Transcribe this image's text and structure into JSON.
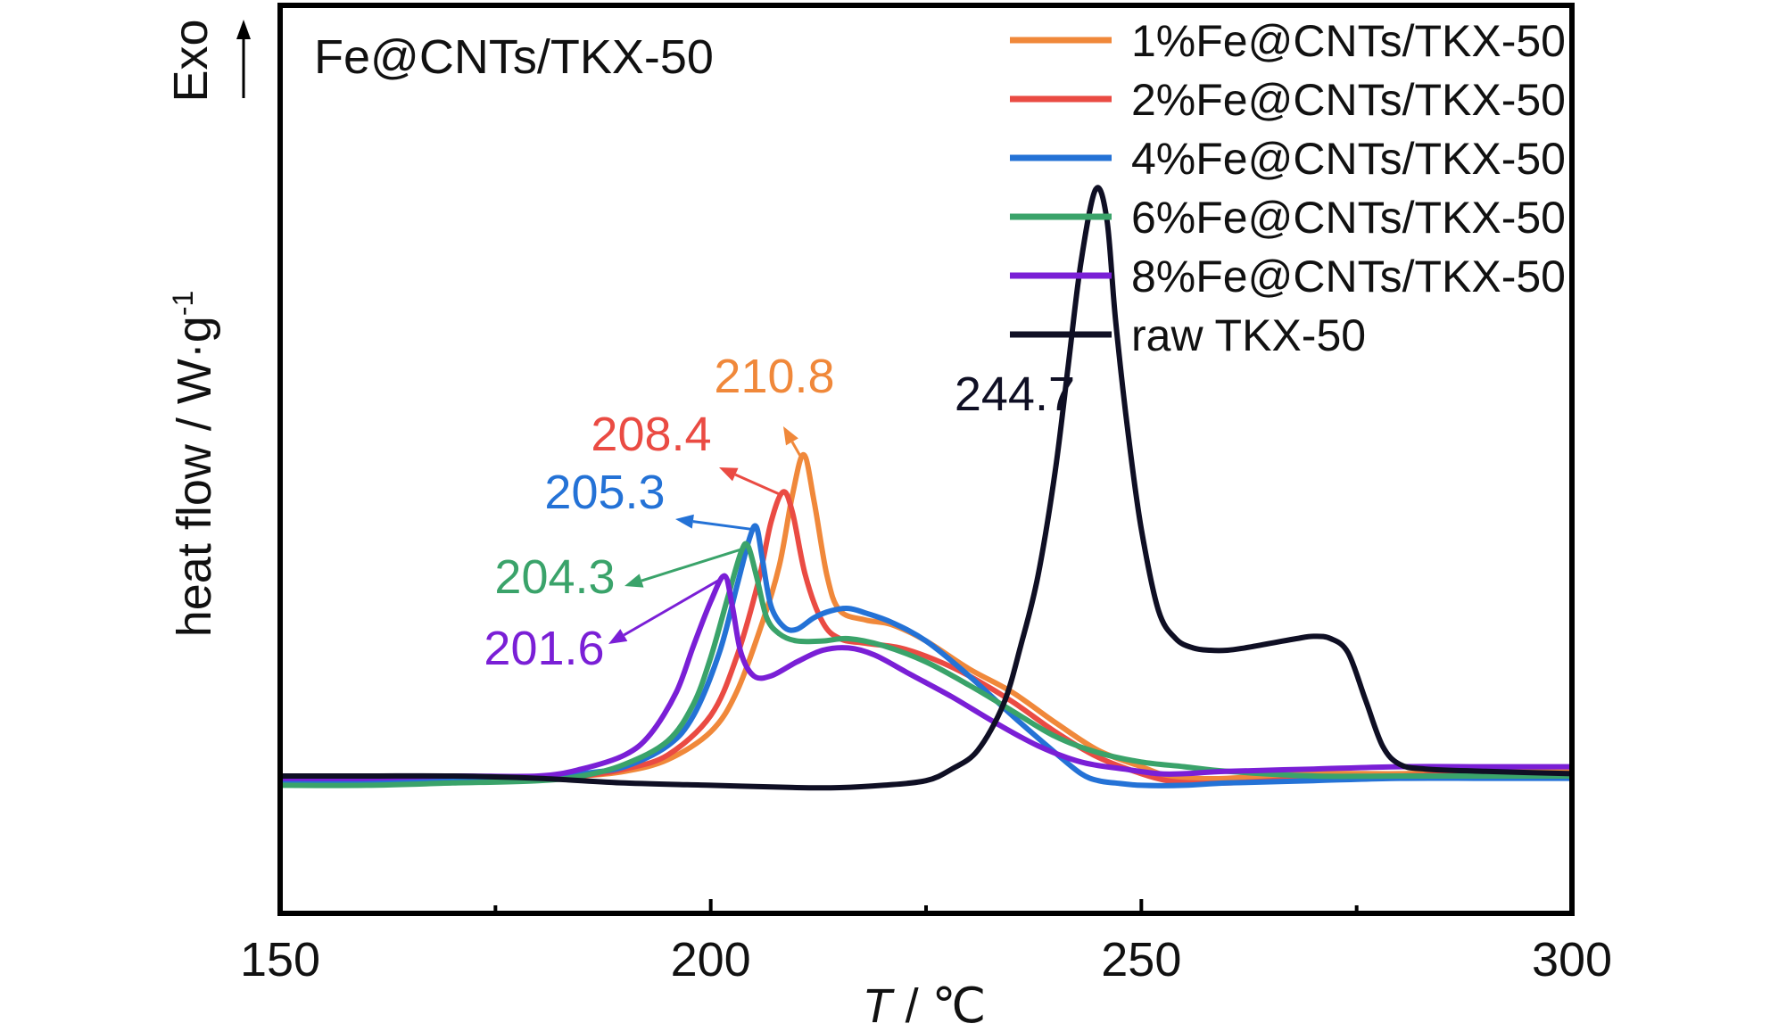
{
  "chart_data": {
    "type": "line",
    "title": "Fe@CNTs/TKX-50",
    "xlabel": {
      "italic": "T",
      "rest": " / ℃"
    },
    "ylabel": {
      "main": "heat flow / W·g",
      "sup": "-1"
    },
    "exo_label": "Exo",
    "xlim": [
      150,
      300
    ],
    "ylim": [
      -0.6,
      3.3
    ],
    "xticks": [
      150,
      200,
      250,
      300
    ],
    "xtick_labels": [
      "150",
      "200",
      "250",
      "300"
    ],
    "minor_xticks": [
      175,
      225,
      275
    ],
    "legend_position": "top-right",
    "series": [
      {
        "name": "1%Fe@CNTs/TKX-50",
        "color": "#f0883a",
        "peak": {
          "x": 210.8,
          "label": "210.8"
        },
        "points": [
          [
            150,
            -0.03
          ],
          [
            170,
            -0.03
          ],
          [
            180,
            -0.02
          ],
          [
            185,
            -0.01
          ],
          [
            190,
            0.01
          ],
          [
            195,
            0.06
          ],
          [
            200,
            0.18
          ],
          [
            203,
            0.35
          ],
          [
            206,
            0.65
          ],
          [
            208,
            0.9
          ],
          [
            209.5,
            1.2
          ],
          [
            210.8,
            1.37
          ],
          [
            212,
            1.17
          ],
          [
            213.5,
            0.85
          ],
          [
            215,
            0.7
          ],
          [
            218,
            0.66
          ],
          [
            221,
            0.64
          ],
          [
            225,
            0.57
          ],
          [
            230,
            0.45
          ],
          [
            235,
            0.35
          ],
          [
            240,
            0.22
          ],
          [
            245,
            0.1
          ],
          [
            250,
            0.03
          ],
          [
            253,
            -0.01
          ],
          [
            256,
            -0.02
          ],
          [
            260,
            -0.02
          ],
          [
            270,
            0.0
          ],
          [
            280,
            0.0
          ],
          [
            290,
            0.01
          ],
          [
            300,
            0.01
          ]
        ]
      },
      {
        "name": "2%Fe@CNTs/TKX-50",
        "color": "#ea4b43",
        "peak": {
          "x": 208.4,
          "label": "208.4"
        },
        "points": [
          [
            150,
            -0.03
          ],
          [
            170,
            -0.03
          ],
          [
            180,
            -0.02
          ],
          [
            185,
            -0.01
          ],
          [
            190,
            0.02
          ],
          [
            195,
            0.08
          ],
          [
            200,
            0.25
          ],
          [
            203,
            0.5
          ],
          [
            205.5,
            0.82
          ],
          [
            207,
            1.08
          ],
          [
            208.4,
            1.21
          ],
          [
            209.5,
            1.12
          ],
          [
            211,
            0.85
          ],
          [
            213,
            0.65
          ],
          [
            215,
            0.58
          ],
          [
            218,
            0.56
          ],
          [
            222,
            0.54
          ],
          [
            226,
            0.49
          ],
          [
            230,
            0.42
          ],
          [
            235,
            0.31
          ],
          [
            240,
            0.18
          ],
          [
            245,
            0.07
          ],
          [
            250,
            0.0
          ],
          [
            253,
            -0.03
          ],
          [
            256,
            -0.04
          ],
          [
            260,
            -0.04
          ],
          [
            265,
            -0.03
          ],
          [
            270,
            -0.02
          ],
          [
            280,
            -0.01
          ],
          [
            290,
            0.0
          ],
          [
            300,
            0.0
          ]
        ]
      },
      {
        "name": "4%Fe@CNTs/TKX-50",
        "color": "#2472d6",
        "peak": {
          "x": 205.3,
          "label": "205.3"
        },
        "points": [
          [
            150,
            -0.03
          ],
          [
            170,
            -0.03
          ],
          [
            180,
            -0.02
          ],
          [
            185,
            0.0
          ],
          [
            190,
            0.03
          ],
          [
            195,
            0.12
          ],
          [
            198,
            0.25
          ],
          [
            201,
            0.52
          ],
          [
            203,
            0.8
          ],
          [
            204.5,
            1.01
          ],
          [
            205.3,
            1.06
          ],
          [
            206,
            0.92
          ],
          [
            207,
            0.72
          ],
          [
            208.5,
            0.63
          ],
          [
            210,
            0.62
          ],
          [
            212,
            0.67
          ],
          [
            214,
            0.7
          ],
          [
            216,
            0.71
          ],
          [
            218,
            0.69
          ],
          [
            221,
            0.65
          ],
          [
            225,
            0.57
          ],
          [
            230,
            0.42
          ],
          [
            235,
            0.25
          ],
          [
            240,
            0.09
          ],
          [
            243,
            0.0
          ],
          [
            245,
            -0.03
          ],
          [
            247,
            -0.04
          ],
          [
            250,
            -0.05
          ],
          [
            255,
            -0.05
          ],
          [
            260,
            -0.04
          ],
          [
            270,
            -0.03
          ],
          [
            280,
            -0.02
          ],
          [
            290,
            -0.02
          ],
          [
            300,
            -0.02
          ]
        ]
      },
      {
        "name": "6%Fe@CNTs/TKX-50",
        "color": "#3aa36a",
        "peak": {
          "x": 204.3,
          "label": "204.3"
        },
        "points": [
          [
            150,
            -0.05
          ],
          [
            160,
            -0.05
          ],
          [
            170,
            -0.04
          ],
          [
            180,
            -0.03
          ],
          [
            185,
            -0.01
          ],
          [
            190,
            0.04
          ],
          [
            195,
            0.14
          ],
          [
            198,
            0.3
          ],
          [
            200,
            0.5
          ],
          [
            202,
            0.76
          ],
          [
            203.5,
            0.95
          ],
          [
            204.3,
            0.98
          ],
          [
            205.3,
            0.85
          ],
          [
            206.5,
            0.67
          ],
          [
            208,
            0.6
          ],
          [
            210,
            0.57
          ],
          [
            213,
            0.57
          ],
          [
            216,
            0.58
          ],
          [
            220,
            0.55
          ],
          [
            225,
            0.48
          ],
          [
            230,
            0.38
          ],
          [
            235,
            0.27
          ],
          [
            240,
            0.16
          ],
          [
            245,
            0.09
          ],
          [
            250,
            0.05
          ],
          [
            255,
            0.03
          ],
          [
            260,
            0.01
          ],
          [
            270,
            -0.01
          ],
          [
            280,
            -0.01
          ],
          [
            290,
            -0.01
          ],
          [
            300,
            -0.01
          ]
        ]
      },
      {
        "name": "8%Fe@CNTs/TKX-50",
        "color": "#7a1fd6",
        "peak": {
          "x": 201.6,
          "label": "201.6"
        },
        "points": [
          [
            150,
            -0.02
          ],
          [
            160,
            -0.02
          ],
          [
            170,
            -0.01
          ],
          [
            180,
            -0.01
          ],
          [
            185,
            0.02
          ],
          [
            190,
            0.08
          ],
          [
            193,
            0.17
          ],
          [
            196,
            0.35
          ],
          [
            198,
            0.55
          ],
          [
            200,
            0.74
          ],
          [
            201.6,
            0.85
          ],
          [
            202.5,
            0.72
          ],
          [
            203.5,
            0.52
          ],
          [
            205,
            0.42
          ],
          [
            207,
            0.42
          ],
          [
            210,
            0.48
          ],
          [
            213,
            0.53
          ],
          [
            216,
            0.54
          ],
          [
            219,
            0.51
          ],
          [
            223,
            0.43
          ],
          [
            228,
            0.33
          ],
          [
            233,
            0.22
          ],
          [
            238,
            0.12
          ],
          [
            243,
            0.05
          ],
          [
            248,
            0.02
          ],
          [
            252,
            0.0
          ],
          [
            255,
            0.0
          ],
          [
            260,
            0.01
          ],
          [
            270,
            0.02
          ],
          [
            280,
            0.03
          ],
          [
            290,
            0.03
          ],
          [
            300,
            0.03
          ]
        ]
      },
      {
        "name": "raw TKX-50",
        "color": "#0f0f24",
        "peak": {
          "x": 244.7,
          "label": "244.7"
        },
        "points": [
          [
            150,
            -0.01
          ],
          [
            160,
            -0.01
          ],
          [
            170,
            -0.01
          ],
          [
            180,
            -0.02
          ],
          [
            190,
            -0.04
          ],
          [
            200,
            -0.05
          ],
          [
            210,
            -0.06
          ],
          [
            215,
            -0.06
          ],
          [
            220,
            -0.05
          ],
          [
            225,
            -0.03
          ],
          [
            228,
            0.02
          ],
          [
            231,
            0.1
          ],
          [
            234,
            0.3
          ],
          [
            236,
            0.55
          ],
          [
            238,
            0.85
          ],
          [
            240,
            1.3
          ],
          [
            241.5,
            1.75
          ],
          [
            243,
            2.2
          ],
          [
            244.7,
            2.51
          ],
          [
            246,
            2.38
          ],
          [
            247,
            1.95
          ],
          [
            248.5,
            1.45
          ],
          [
            250,
            1.05
          ],
          [
            252,
            0.7
          ],
          [
            254,
            0.58
          ],
          [
            256,
            0.54
          ],
          [
            258,
            0.53
          ],
          [
            260,
            0.53
          ],
          [
            262,
            0.54
          ],
          [
            265,
            0.56
          ],
          [
            268,
            0.58
          ],
          [
            270,
            0.59
          ],
          [
            272,
            0.58
          ],
          [
            274,
            0.52
          ],
          [
            276,
            0.32
          ],
          [
            278,
            0.12
          ],
          [
            280,
            0.04
          ],
          [
            283,
            0.02
          ],
          [
            290,
            0.01
          ],
          [
            300,
            0.0
          ]
        ]
      }
    ]
  }
}
